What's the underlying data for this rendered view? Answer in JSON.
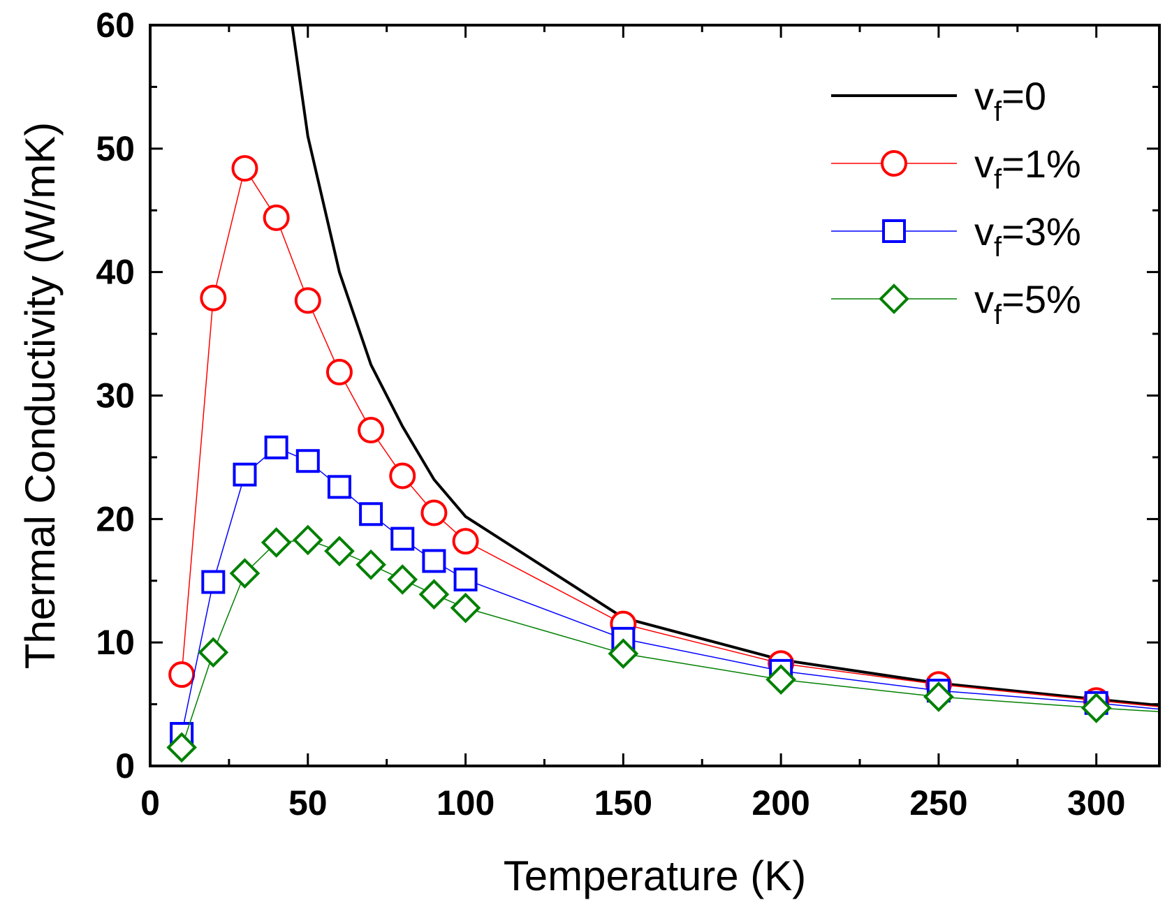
{
  "chart_data": {
    "type": "line",
    "title": "",
    "xlabel": "Temperature (K)",
    "ylabel": "Thermal Conductivity (W/mK)",
    "xlim": [
      0,
      320
    ],
    "ylim": [
      0,
      60
    ],
    "xticks": [
      0,
      50,
      100,
      150,
      200,
      250,
      300
    ],
    "xtick_labels": [
      "0",
      "50",
      "100",
      "150",
      "200",
      "250",
      "300"
    ],
    "yticks": [
      0,
      10,
      20,
      30,
      40,
      50,
      60
    ],
    "ytick_labels": [
      "0",
      "10",
      "20",
      "30",
      "40",
      "50",
      "60"
    ],
    "grid": false,
    "legend_position": "top-right",
    "series": [
      {
        "name": "v_f=0",
        "legend_main": "v",
        "legend_sub": "f",
        "legend_tail": "=0",
        "color": "#000000",
        "marker": "none",
        "x": [
          45,
          50,
          60,
          70,
          80,
          90,
          100,
          150,
          200,
          250,
          300,
          320
        ],
        "y": [
          60,
          51,
          40,
          32.5,
          27.5,
          23.2,
          20.2,
          12.0,
          8.6,
          6.7,
          5.4,
          4.9
        ]
      },
      {
        "name": "v_f=1%",
        "legend_main": "v",
        "legend_sub": "f",
        "legend_tail": "=1%",
        "color": "#ff0000",
        "marker": "circle",
        "x": [
          10,
          20,
          30,
          40,
          50,
          60,
          70,
          80,
          90,
          100,
          150,
          200,
          250,
          300,
          320
        ],
        "y": [
          7.4,
          37.9,
          48.4,
          44.4,
          37.7,
          31.9,
          27.2,
          23.5,
          20.5,
          18.2,
          11.5,
          8.3,
          6.6,
          5.3,
          4.8
        ]
      },
      {
        "name": "v_f=3%",
        "legend_main": "v",
        "legend_sub": "f",
        "legend_tail": "=3%",
        "color": "#0000ff",
        "marker": "square",
        "x": [
          10,
          20,
          30,
          40,
          50,
          60,
          70,
          80,
          90,
          100,
          150,
          200,
          250,
          300,
          320
        ],
        "y": [
          2.6,
          14.9,
          23.6,
          25.8,
          24.7,
          22.6,
          20.4,
          18.4,
          16.6,
          15.1,
          10.3,
          7.7,
          6.1,
          5.1,
          4.6
        ]
      },
      {
        "name": "v_f=5%",
        "legend_main": "v",
        "legend_sub": "f",
        "legend_tail": "=5%",
        "color": "#008000",
        "marker": "diamond",
        "x": [
          10,
          20,
          30,
          40,
          50,
          60,
          70,
          80,
          90,
          100,
          150,
          200,
          250,
          300,
          320
        ],
        "y": [
          1.5,
          9.2,
          15.6,
          18.1,
          18.3,
          17.4,
          16.3,
          15.1,
          13.9,
          12.8,
          9.1,
          7.0,
          5.6,
          4.7,
          4.4
        ]
      }
    ]
  }
}
